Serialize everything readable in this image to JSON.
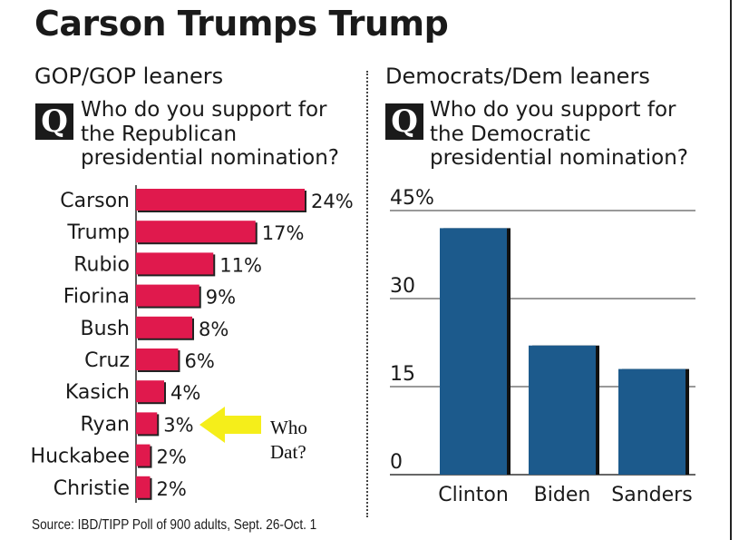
{
  "title": "Carson Trumps Trump",
  "gop": {
    "header": "GOP/GOP leaners",
    "q_badge": "Q",
    "question_lines": [
      "Who do you support for",
      "the Republican",
      "presidential nomination?"
    ]
  },
  "dem": {
    "header": "Democrats/Dem leaners",
    "q_badge": "Q",
    "question_lines": [
      "Who do you support for",
      "the Democratic",
      "presidential nomination?"
    ]
  },
  "annotation": {
    "line1": "Who",
    "line2": "Dat?"
  },
  "source": "Source: IBD/TIPP Poll of 900 adults, Sept. 26-Oct. 1",
  "colors": {
    "gop_bar": "#e0194d",
    "gop_bar_shadow": "#222222",
    "dem_bar": "#1c5a8c",
    "dem_bar_shadow": "#111111",
    "arrow": "#f5ee1a"
  },
  "chart_data": [
    {
      "type": "bar",
      "orientation": "horizontal",
      "categories": [
        "Carson",
        "Trump",
        "Rubio",
        "Fiorina",
        "Bush",
        "Cruz",
        "Kasich",
        "Ryan",
        "Huckabee",
        "Christie"
      ],
      "values": [
        24,
        17,
        11,
        9,
        8,
        6,
        4,
        3,
        2,
        2
      ],
      "value_labels": [
        "24%",
        "17%",
        "11%",
        "9%",
        "8%",
        "6%",
        "4%",
        "3%",
        "2%",
        "2%"
      ],
      "title": "GOP/GOP leaners",
      "xlim": [
        0,
        24
      ]
    },
    {
      "type": "bar",
      "categories": [
        "Clinton",
        "Biden",
        "Sanders"
      ],
      "values": [
        42,
        22,
        18
      ],
      "title": "Democrats/Dem leaners",
      "ylim": [
        0,
        45
      ],
      "yticks": [
        0,
        15,
        30,
        45
      ],
      "ytick_labels": [
        "0",
        "15",
        "30",
        "45%"
      ],
      "grid": true
    }
  ]
}
